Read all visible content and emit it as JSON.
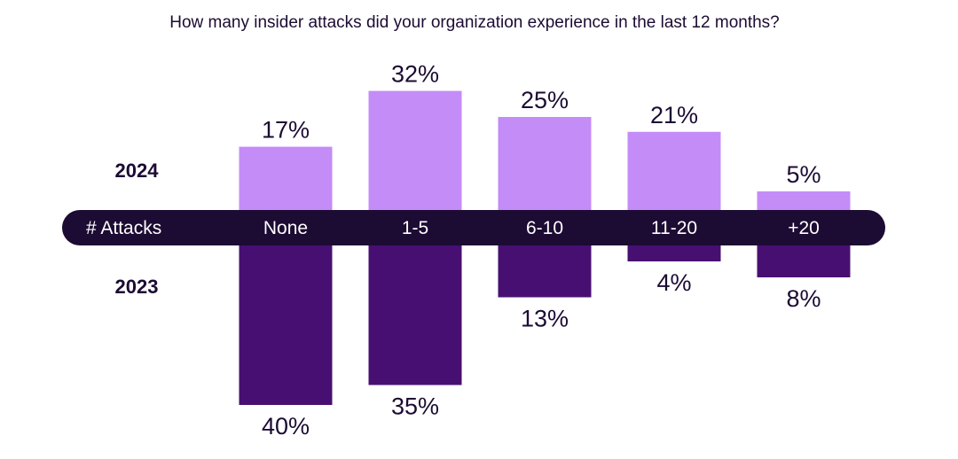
{
  "chart_data": {
    "type": "bar",
    "title": "How many insider attacks did your organization experience in the last 12 months?",
    "axis_label": "# Attacks",
    "categories": [
      "None",
      "1-5",
      "6-10",
      "11-20",
      "+20"
    ],
    "series": [
      {
        "name": "2024",
        "values": [
          17,
          32,
          25,
          21,
          5
        ],
        "labels": [
          "17%",
          "32%",
          "25%",
          "21%",
          "5%"
        ],
        "direction": "up"
      },
      {
        "name": "2023",
        "values": [
          40,
          35,
          13,
          4,
          8
        ],
        "labels": [
          "40%",
          "35%",
          "13%",
          "4%",
          "8%"
        ],
        "direction": "down"
      }
    ],
    "unit": "%",
    "legend": "left",
    "grid": false,
    "colors": {
      "series_2024": "#c48cf7",
      "series_2023": "#480f72",
      "axis_band": "#1c0b33",
      "axis_text": "#ffffff",
      "text": "#1c0b33"
    }
  }
}
